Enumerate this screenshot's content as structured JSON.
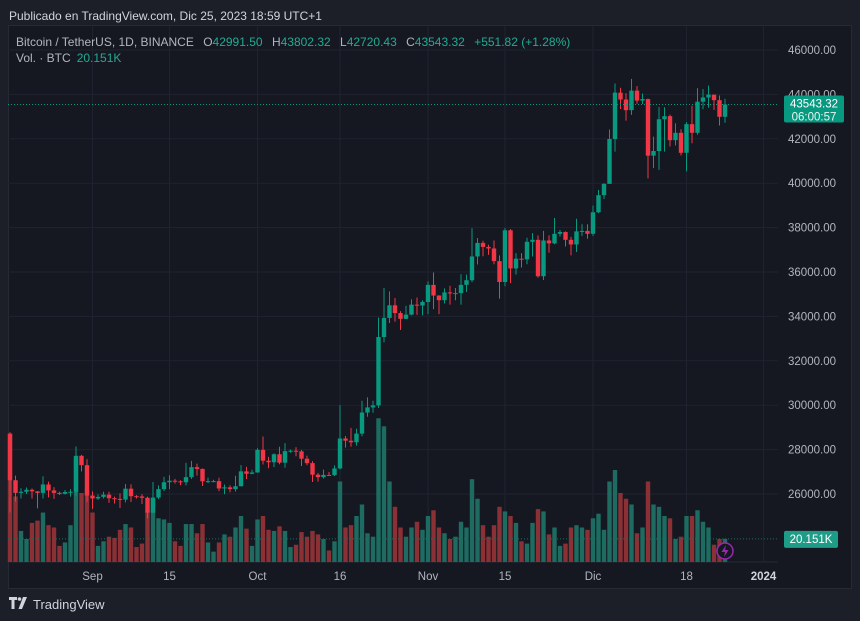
{
  "published": "Publicado en TradingView.com, Dic 25, 2023 18:59 UTC+1",
  "legend": {
    "symbol": "Bitcoin / TetherUS, 1D, BINANCE",
    "o_label": "O",
    "o": "42991.50",
    "h_label": "H",
    "h": "43802.32",
    "l_label": "L",
    "l": "42720.43",
    "c_label": "C",
    "c": "43543.32",
    "change": "+551.82 (+1.28%)",
    "vol_label": "Vol. · BTC",
    "vol": "20.151K"
  },
  "last_price": {
    "price": "43543.32",
    "countdown": "06:00:57",
    "value": 43543.32
  },
  "volume_label": {
    "text": "20.151K",
    "value": 20.151
  },
  "footer": {
    "brand": "TradingView",
    "logo_icon": "tradingview-logo-icon"
  },
  "colors": {
    "up": "#089981",
    "down": "#f23645",
    "up_volume": "#1d6b61",
    "down_volume": "#8b3136",
    "background": "#151821",
    "grid": "#1f2330",
    "alert_icon": "#9c27b0"
  },
  "chart_data": {
    "type": "candlestick",
    "title": "Bitcoin / TetherUS, 1D, BINANCE",
    "ylim": [
      23500,
      47000
    ],
    "y_ticks": [
      "46000.00",
      "44000.00",
      "42000.00",
      "40000.00",
      "38000.00",
      "36000.00",
      "34000.00",
      "32000.00",
      "30000.00",
      "28000.00",
      "26000.00"
    ],
    "y_tick_values": [
      46000,
      44000,
      42000,
      40000,
      38000,
      36000,
      34000,
      32000,
      30000,
      28000,
      26000
    ],
    "x_ticks": [
      {
        "label": "Sep",
        "date": "2023-09-01"
      },
      {
        "label": "15",
        "date": "2023-09-15"
      },
      {
        "label": "Oct",
        "date": "2023-10-01"
      },
      {
        "label": "16",
        "date": "2023-10-16"
      },
      {
        "label": "Nov",
        "date": "2023-11-01"
      },
      {
        "label": "15",
        "date": "2023-11-15"
      },
      {
        "label": "Dic",
        "date": "2023-12-01"
      },
      {
        "label": "18",
        "date": "2023-12-18"
      },
      {
        "label": "2024",
        "date": "2024-01-01"
      }
    ],
    "grid": true,
    "columns": [
      "date",
      "open",
      "high",
      "low",
      "close",
      "volume_k"
    ],
    "candles": [
      [
        "2023-08-17",
        28700,
        28780,
        25170,
        26620,
        112
      ],
      [
        "2023-08-18",
        26620,
        26830,
        25660,
        26050,
        57
      ],
      [
        "2023-08-19",
        26050,
        26260,
        25800,
        26100,
        27
      ],
      [
        "2023-08-20",
        26100,
        26290,
        26000,
        26190,
        20
      ],
      [
        "2023-08-21",
        26190,
        26250,
        25800,
        26120,
        34
      ],
      [
        "2023-08-22",
        26120,
        26130,
        25350,
        26050,
        36
      ],
      [
        "2023-08-23",
        26050,
        26800,
        25800,
        26430,
        43
      ],
      [
        "2023-08-24",
        26430,
        26560,
        25850,
        26160,
        32
      ],
      [
        "2023-08-25",
        26160,
        26310,
        25780,
        26050,
        30
      ],
      [
        "2023-08-26",
        26050,
        26100,
        25960,
        26010,
        14
      ],
      [
        "2023-08-27",
        26010,
        26180,
        25980,
        26090,
        17
      ],
      [
        "2023-08-28",
        26090,
        26220,
        25880,
        26100,
        32
      ],
      [
        "2023-08-29",
        26100,
        28140,
        25920,
        27720,
        90
      ],
      [
        "2023-08-30",
        27720,
        27760,
        27020,
        27300,
        60
      ],
      [
        "2023-08-31",
        27300,
        27570,
        25650,
        25930,
        63
      ],
      [
        "2023-09-01",
        25930,
        26120,
        25330,
        25800,
        43
      ],
      [
        "2023-09-02",
        25800,
        25980,
        25730,
        25870,
        14
      ],
      [
        "2023-09-03",
        25870,
        26100,
        25800,
        25970,
        18
      ],
      [
        "2023-09-04",
        25970,
        26100,
        25600,
        25810,
        22
      ],
      [
        "2023-09-05",
        25810,
        25880,
        25570,
        25780,
        21
      ],
      [
        "2023-09-06",
        25780,
        26030,
        25370,
        25750,
        28
      ],
      [
        "2023-09-07",
        25750,
        26450,
        25620,
        26240,
        33
      ],
      [
        "2023-09-08",
        26240,
        26440,
        25640,
        25900,
        30
      ],
      [
        "2023-09-09",
        25900,
        25950,
        25800,
        25890,
        13
      ],
      [
        "2023-09-10",
        25890,
        25990,
        25550,
        25830,
        16
      ],
      [
        "2023-09-11",
        25830,
        25880,
        24900,
        25160,
        45
      ],
      [
        "2023-09-12",
        25160,
        26540,
        25130,
        25840,
        55
      ],
      [
        "2023-09-13",
        25840,
        26390,
        25770,
        26220,
        38
      ],
      [
        "2023-09-14",
        26220,
        26770,
        26130,
        26530,
        37
      ],
      [
        "2023-09-15",
        26530,
        26850,
        26220,
        26600,
        34
      ],
      [
        "2023-09-16",
        26600,
        26680,
        26470,
        26570,
        18
      ],
      [
        "2023-09-17",
        26570,
        26620,
        26400,
        26530,
        14
      ],
      [
        "2023-09-18",
        26530,
        27410,
        26390,
        26760,
        33
      ],
      [
        "2023-09-19",
        26760,
        27490,
        26680,
        27210,
        33
      ],
      [
        "2023-09-20",
        27210,
        27370,
        26830,
        27130,
        25
      ],
      [
        "2023-09-21",
        27130,
        27150,
        26360,
        26570,
        33
      ],
      [
        "2023-09-22",
        26570,
        26740,
        26490,
        26580,
        17
      ],
      [
        "2023-09-23",
        26580,
        26640,
        26530,
        26580,
        9
      ],
      [
        "2023-09-24",
        26580,
        26730,
        26130,
        26250,
        17
      ],
      [
        "2023-09-25",
        26250,
        26430,
        25990,
        26300,
        24
      ],
      [
        "2023-09-26",
        26300,
        26390,
        26080,
        26220,
        22
      ],
      [
        "2023-09-27",
        26220,
        26820,
        26110,
        26350,
        30
      ],
      [
        "2023-09-28",
        26350,
        27300,
        26340,
        27020,
        40
      ],
      [
        "2023-09-29",
        27020,
        27230,
        26670,
        26910,
        29
      ],
      [
        "2023-09-30",
        26910,
        27090,
        26890,
        26970,
        14
      ],
      [
        "2023-10-01",
        26970,
        28060,
        26960,
        27990,
        37
      ],
      [
        "2023-10-02",
        27990,
        28590,
        27330,
        27500,
        40
      ],
      [
        "2023-10-03",
        27500,
        27670,
        27160,
        27430,
        28
      ],
      [
        "2023-10-04",
        27430,
        27830,
        27210,
        27790,
        27
      ],
      [
        "2023-10-05",
        27790,
        28130,
        27340,
        27410,
        31
      ],
      [
        "2023-10-06",
        27410,
        28290,
        27180,
        27930,
        27
      ],
      [
        "2023-10-07",
        27930,
        28000,
        27860,
        27950,
        13
      ],
      [
        "2023-10-08",
        27950,
        28110,
        27700,
        27920,
        15
      ],
      [
        "2023-10-09",
        27920,
        27990,
        27260,
        27590,
        26
      ],
      [
        "2023-10-10",
        27590,
        27730,
        27300,
        27390,
        22
      ],
      [
        "2023-10-11",
        27390,
        27480,
        26540,
        26870,
        27
      ],
      [
        "2023-10-12",
        26870,
        26950,
        26560,
        26760,
        24
      ],
      [
        "2023-10-13",
        26760,
        27100,
        26700,
        26860,
        20
      ],
      [
        "2023-10-14",
        26860,
        26990,
        26830,
        26850,
        10
      ],
      [
        "2023-10-15",
        26850,
        27290,
        26810,
        27150,
        18
      ],
      [
        "2023-10-16",
        27150,
        30000,
        27110,
        28500,
        70
      ],
      [
        "2023-10-17",
        28500,
        28610,
        28090,
        28400,
        30
      ],
      [
        "2023-10-18",
        28400,
        28980,
        28130,
        28330,
        32
      ],
      [
        "2023-10-19",
        28330,
        28940,
        28180,
        28720,
        40
      ],
      [
        "2023-10-20",
        28720,
        30200,
        28600,
        29670,
        50
      ],
      [
        "2023-10-21",
        29670,
        30350,
        29480,
        29900,
        25
      ],
      [
        "2023-10-22",
        29900,
        30200,
        29660,
        29990,
        22
      ],
      [
        "2023-10-23",
        29990,
        33950,
        29880,
        33070,
        125
      ],
      [
        "2023-10-24",
        33070,
        35280,
        32830,
        33930,
        118
      ],
      [
        "2023-10-25",
        33930,
        35130,
        33700,
        34500,
        70
      ],
      [
        "2023-10-26",
        34500,
        34830,
        33760,
        34150,
        48
      ],
      [
        "2023-10-27",
        34150,
        34240,
        33390,
        33890,
        30
      ],
      [
        "2023-10-28",
        33890,
        34480,
        33880,
        34080,
        22
      ],
      [
        "2023-10-29",
        34080,
        34770,
        34050,
        34530,
        30
      ],
      [
        "2023-10-30",
        34530,
        34850,
        34070,
        34490,
        35
      ],
      [
        "2023-10-31",
        34490,
        34720,
        34050,
        34650,
        28
      ],
      [
        "2023-11-01",
        34650,
        35580,
        34100,
        35420,
        40
      ],
      [
        "2023-11-02",
        35420,
        35980,
        34330,
        34940,
        45
      ],
      [
        "2023-11-03",
        34940,
        34950,
        34100,
        34730,
        30
      ],
      [
        "2023-11-04",
        34730,
        35260,
        34580,
        35080,
        25
      ],
      [
        "2023-11-05",
        35080,
        35380,
        34530,
        35050,
        20
      ],
      [
        "2023-11-06",
        35050,
        35280,
        34730,
        35050,
        22
      ],
      [
        "2023-11-07",
        35050,
        35900,
        34530,
        35420,
        35
      ],
      [
        "2023-11-08",
        35420,
        35890,
        35100,
        35630,
        30
      ],
      [
        "2023-11-09",
        35630,
        37970,
        35540,
        36700,
        72
      ],
      [
        "2023-11-10",
        36700,
        37530,
        36340,
        37310,
        55
      ],
      [
        "2023-11-11",
        37310,
        37410,
        36710,
        37130,
        32
      ],
      [
        "2023-11-12",
        37130,
        37230,
        36770,
        37060,
        22
      ],
      [
        "2023-11-13",
        37060,
        37420,
        36350,
        36490,
        32
      ],
      [
        "2023-11-14",
        36490,
        36750,
        34800,
        35550,
        48
      ],
      [
        "2023-11-15",
        35550,
        37980,
        35360,
        37880,
        44
      ],
      [
        "2023-11-16",
        37880,
        37930,
        35500,
        36160,
        40
      ],
      [
        "2023-11-17",
        36160,
        36850,
        35880,
        36600,
        34
      ],
      [
        "2023-11-18",
        36600,
        36850,
        36200,
        36570,
        18
      ],
      [
        "2023-11-19",
        36570,
        37540,
        36350,
        37360,
        16
      ],
      [
        "2023-11-20",
        37360,
        37750,
        36700,
        37450,
        34
      ],
      [
        "2023-11-21",
        37450,
        37650,
        35740,
        35810,
        46
      ],
      [
        "2023-11-22",
        35810,
        37850,
        35640,
        37420,
        44
      ],
      [
        "2023-11-23",
        37420,
        37650,
        36870,
        37290,
        24
      ],
      [
        "2023-11-24",
        37290,
        38430,
        37250,
        37720,
        30
      ],
      [
        "2023-11-25",
        37720,
        37890,
        37600,
        37800,
        14
      ],
      [
        "2023-11-26",
        37800,
        37830,
        37150,
        37450,
        16
      ],
      [
        "2023-11-27",
        37450,
        37580,
        36750,
        37240,
        30
      ],
      [
        "2023-11-28",
        37240,
        38400,
        36900,
        37830,
        32
      ],
      [
        "2023-11-29",
        37830,
        38150,
        37620,
        37850,
        30
      ],
      [
        "2023-11-30",
        37850,
        38150,
        37500,
        37720,
        28
      ],
      [
        "2023-12-01",
        37720,
        38990,
        37620,
        38690,
        38
      ],
      [
        "2023-12-02",
        38690,
        39700,
        38650,
        39460,
        42
      ],
      [
        "2023-12-03",
        39460,
        40000,
        39280,
        39970,
        28
      ],
      [
        "2023-12-04",
        39970,
        42420,
        39970,
        41990,
        70
      ],
      [
        "2023-12-05",
        41990,
        44490,
        41420,
        44080,
        80
      ],
      [
        "2023-12-06",
        44080,
        44300,
        43340,
        43770,
        60
      ],
      [
        "2023-12-07",
        43770,
        44050,
        42820,
        43290,
        55
      ],
      [
        "2023-12-08",
        43290,
        44700,
        43080,
        44170,
        50
      ],
      [
        "2023-12-09",
        44170,
        44370,
        43580,
        43720,
        25
      ],
      [
        "2023-12-10",
        43720,
        44040,
        43570,
        43790,
        30
      ],
      [
        "2023-12-11",
        43790,
        43810,
        40220,
        41240,
        70
      ],
      [
        "2023-12-12",
        41240,
        42100,
        40680,
        41450,
        50
      ],
      [
        "2023-12-13",
        41450,
        43430,
        40600,
        42880,
        48
      ],
      [
        "2023-12-14",
        42880,
        43420,
        41420,
        43020,
        40
      ],
      [
        "2023-12-15",
        43020,
        43090,
        41660,
        41940,
        38
      ],
      [
        "2023-12-16",
        41940,
        42700,
        41700,
        42270,
        20
      ],
      [
        "2023-12-17",
        42270,
        42430,
        41250,
        41370,
        22
      ],
      [
        "2023-12-18",
        41370,
        42750,
        40530,
        42660,
        40
      ],
      [
        "2023-12-19",
        42660,
        43490,
        41800,
        42270,
        40
      ],
      [
        "2023-12-20",
        42270,
        44280,
        42180,
        43670,
        45
      ],
      [
        "2023-12-21",
        43670,
        44240,
        43330,
        43860,
        35
      ],
      [
        "2023-12-22",
        43860,
        44400,
        43400,
        43990,
        30
      ],
      [
        "2023-12-23",
        43990,
        43990,
        43300,
        43740,
        15
      ],
      [
        "2023-12-24",
        43740,
        43950,
        42600,
        42990,
        20
      ],
      [
        "2023-12-25",
        42991.5,
        43802.32,
        42720.43,
        43543.32,
        20.151
      ]
    ]
  }
}
